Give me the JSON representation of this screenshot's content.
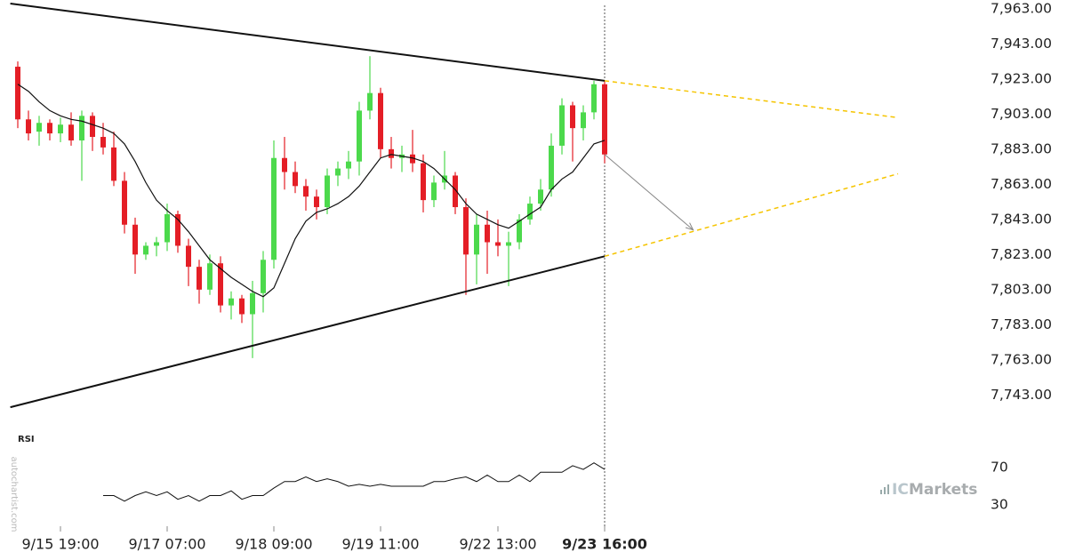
{
  "chart_data": {
    "type": "candlestick",
    "categories": [
      null,
      null,
      null,
      null,
      "9/15 19:00",
      null,
      null,
      null,
      null,
      null,
      null,
      null,
      null,
      null,
      "9/17 07:00",
      null,
      null,
      null,
      null,
      null,
      null,
      null,
      null,
      null,
      "9/18 09:00",
      null,
      null,
      null,
      null,
      null,
      null,
      null,
      null,
      null,
      "9/19 11:00",
      null,
      null,
      null,
      null,
      null,
      null,
      null,
      null,
      null,
      null,
      "9/22 13:00",
      null,
      null,
      null,
      null,
      null,
      null,
      null,
      null,
      null,
      "9/23 16:00"
    ],
    "open": [
      7930,
      7900,
      7893,
      7898,
      7892,
      7897,
      7888,
      7902,
      7890,
      7884,
      7865,
      7840,
      7823,
      7828,
      7830,
      7846,
      7828,
      7816,
      7803,
      7818,
      7794,
      7798,
      7789,
      7801,
      7820,
      7878,
      7870,
      7862,
      7856,
      7850,
      7868,
      7872,
      7876,
      7905,
      7915,
      7883,
      7878,
      7880,
      7875,
      7854,
      7864,
      7868,
      7850,
      7823,
      7840,
      7830,
      7828,
      7830,
      7843,
      7852,
      7860,
      7885,
      7908,
      7895,
      7904,
      7920
    ],
    "high": [
      7933,
      7905,
      7902,
      7900,
      7901,
      7904,
      7905,
      7904,
      7898,
      7893,
      7870,
      7844,
      7830,
      7833,
      7852,
      7848,
      7832,
      7820,
      7823,
      7822,
      7802,
      7800,
      7808,
      7825,
      7888,
      7890,
      7876,
      7866,
      7860,
      7872,
      7876,
      7882,
      7910,
      7936,
      7918,
      7890,
      7885,
      7894,
      7880,
      7868,
      7882,
      7870,
      7855,
      7846,
      7848,
      7843,
      7836,
      7846,
      7856,
      7866,
      7892,
      7912,
      7910,
      7908,
      7922,
      7922
    ],
    "low": [
      7895,
      7888,
      7885,
      7888,
      7887,
      7885,
      7865,
      7882,
      7880,
      7862,
      7835,
      7812,
      7820,
      7822,
      7825,
      7824,
      7805,
      7795,
      7800,
      7790,
      7786,
      7784,
      7764,
      7790,
      7815,
      7860,
      7858,
      7848,
      7843,
      7846,
      7862,
      7866,
      7868,
      7900,
      7878,
      7872,
      7870,
      7870,
      7847,
      7850,
      7860,
      7846,
      7800,
      7806,
      7812,
      7822,
      7805,
      7826,
      7840,
      7848,
      7856,
      7880,
      7876,
      7888,
      7900,
      7875
    ],
    "close": [
      7900,
      7892,
      7898,
      7892,
      7897,
      7888,
      7902,
      7890,
      7884,
      7865,
      7840,
      7823,
      7828,
      7830,
      7846,
      7828,
      7816,
      7803,
      7818,
      7794,
      7798,
      7789,
      7801,
      7820,
      7878,
      7870,
      7862,
      7856,
      7850,
      7868,
      7872,
      7876,
      7905,
      7915,
      7883,
      7878,
      7880,
      7875,
      7854,
      7864,
      7868,
      7850,
      7823,
      7840,
      7830,
      7828,
      7830,
      7843,
      7852,
      7860,
      7885,
      7908,
      7895,
      7904,
      7920,
      7880
    ],
    "ma": [
      7920,
      7916,
      7910,
      7905,
      7902,
      7900,
      7899,
      7897,
      7895,
      7892,
      7886,
      7876,
      7864,
      7854,
      7848,
      7843,
      7836,
      7828,
      7820,
      7815,
      7810,
      7806,
      7802,
      7799,
      7804,
      7818,
      7832,
      7842,
      7847,
      7849,
      7852,
      7856,
      7862,
      7870,
      7878,
      7880,
      7879,
      7878,
      7876,
      7872,
      7866,
      7860,
      7852,
      7846,
      7843,
      7840,
      7838,
      7842,
      7846,
      7850,
      7860,
      7866,
      7870,
      7878,
      7886,
      7888
    ],
    "up_color": "#4cd94c",
    "down_color": "#e41e26",
    "ma_color": "#111111",
    "ylim": [
      7730,
      7968
    ],
    "yticks": [
      {
        "value": 7743,
        "label": "7,743.00"
      },
      {
        "value": 7763,
        "label": "7,763.00"
      },
      {
        "value": 7783,
        "label": "7,783.00"
      },
      {
        "value": 7803,
        "label": "7,803.00"
      },
      {
        "value": 7823,
        "label": "7,823.00"
      },
      {
        "value": 7843,
        "label": "7,843.00"
      },
      {
        "value": 7863,
        "label": "7,863.00"
      },
      {
        "value": 7883,
        "label": "7,883.00"
      },
      {
        "value": 7903,
        "label": "7,903.00"
      },
      {
        "value": 7923,
        "label": "7,923.00"
      },
      {
        "value": 7943,
        "label": "7,943.00"
      },
      {
        "value": 7963,
        "label": "7,963.00"
      }
    ],
    "trendlines": [
      {
        "start": [
          -0.7,
          7966
        ],
        "end": [
          55,
          7922
        ],
        "color": "#111111",
        "dashed": false
      },
      {
        "start": [
          -0.7,
          7736
        ],
        "end": [
          55,
          7822
        ],
        "color": "#111111",
        "dashed": false
      },
      {
        "start": [
          55,
          7922
        ],
        "end": [
          82.5,
          7901
        ],
        "color": "#f5c400",
        "dashed": true
      },
      {
        "start": [
          55,
          7822
        ],
        "end": [
          82.5,
          7869
        ],
        "color": "#f5c400",
        "dashed": true
      }
    ],
    "arrow": {
      "start": [
        55,
        7880
      ],
      "end": [
        63.3,
        7837
      ],
      "color": "#888888"
    },
    "rsi": {
      "label": "RSI",
      "ylim": [
        10,
        100
      ],
      "yticks": [
        30,
        70
      ],
      "values": [
        null,
        null,
        null,
        null,
        null,
        null,
        null,
        null,
        40,
        40,
        34,
        40,
        44,
        40,
        44,
        36,
        40,
        34,
        40,
        40,
        45,
        36,
        40,
        40,
        48,
        55,
        55,
        60,
        55,
        58,
        55,
        50,
        52,
        50,
        52,
        50,
        50,
        50,
        50,
        55,
        55,
        58,
        60,
        55,
        62,
        55,
        55,
        62,
        55,
        65,
        65,
        65,
        72,
        68,
        75,
        68
      ]
    },
    "watermark": "autochartist.com",
    "brand_prefix": "IC",
    "brand_name": "Markets"
  }
}
